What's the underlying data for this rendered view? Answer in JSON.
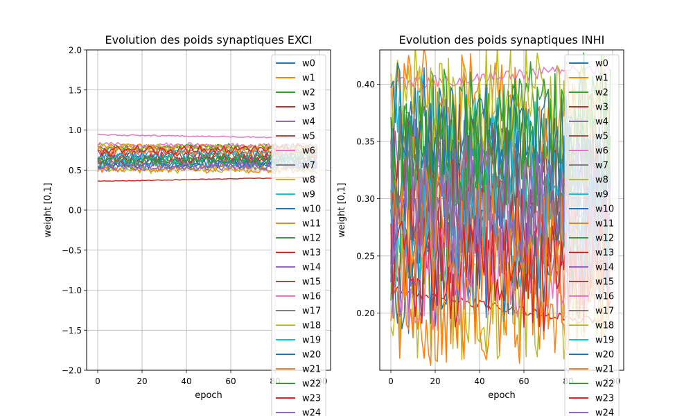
{
  "chart_data": [
    {
      "type": "line",
      "title": "Evolution des poids synaptiques EXCI",
      "xlabel": "epoch",
      "ylabel": "weight [0,1]",
      "xlim": [
        -5,
        105
      ],
      "ylim": [
        -2.0,
        2.0
      ],
      "xticks": [
        0,
        20,
        40,
        60,
        80,
        100
      ],
      "xtick_labels": [
        "0",
        "20",
        "40",
        "60",
        "80",
        "100"
      ],
      "yticks": [
        -2.0,
        -1.5,
        -1.0,
        -0.5,
        0.0,
        0.5,
        1.0,
        1.5,
        2.0
      ],
      "ytick_labels": [
        "−2.0",
        "−1.5",
        "−1.0",
        "−0.5",
        "0.0",
        "0.5",
        "1.0",
        "1.5",
        "2.0"
      ],
      "grid": true,
      "legend_position": "upper-right",
      "n_epochs": 100,
      "series": [
        {
          "name": "w0",
          "color": "#1f77b4",
          "start": 0.62,
          "end": 0.58,
          "amp": 0.07
        },
        {
          "name": "w1",
          "color": "#ff7f0e",
          "start": 0.8,
          "end": 0.78,
          "amp": 0.03
        },
        {
          "name": "w2",
          "color": "#2ca02c",
          "start": 0.55,
          "end": 0.72,
          "amp": 0.08
        },
        {
          "name": "w3",
          "color": "#d62728",
          "start": 0.36,
          "end": 0.41,
          "amp": 0.005
        },
        {
          "name": "w4",
          "color": "#9467bd",
          "start": 0.72,
          "end": 0.68,
          "amp": 0.06
        },
        {
          "name": "w5",
          "color": "#8c564b",
          "start": 0.6,
          "end": 0.62,
          "amp": 0.07
        },
        {
          "name": "w6",
          "color": "#e377c2",
          "start": 0.94,
          "end": 0.9,
          "amp": 0.008
        },
        {
          "name": "w7",
          "color": "#7f7f7f",
          "start": 0.76,
          "end": 0.74,
          "amp": 0.05
        },
        {
          "name": "w8",
          "color": "#bcbd22",
          "start": 0.5,
          "end": 0.52,
          "amp": 0.05
        },
        {
          "name": "w9",
          "color": "#17becf",
          "start": 0.58,
          "end": 0.6,
          "amp": 0.07
        },
        {
          "name": "w10",
          "color": "#1f77b4",
          "start": 0.7,
          "end": 0.55,
          "amp": 0.06
        },
        {
          "name": "w11",
          "color": "#ff7f0e",
          "start": 0.52,
          "end": 0.5,
          "amp": 0.05
        },
        {
          "name": "w12",
          "color": "#2ca02c",
          "start": 0.78,
          "end": 0.8,
          "amp": 0.04
        },
        {
          "name": "w13",
          "color": "#d62728",
          "start": 0.66,
          "end": 0.65,
          "amp": 0.08
        },
        {
          "name": "w14",
          "color": "#9467bd",
          "start": 0.55,
          "end": 0.56,
          "amp": 0.06
        },
        {
          "name": "w15",
          "color": "#8c564b",
          "start": 0.64,
          "end": 0.7,
          "amp": 0.07
        },
        {
          "name": "w16",
          "color": "#e377c2",
          "start": 0.82,
          "end": 0.8,
          "amp": 0.03
        },
        {
          "name": "w17",
          "color": "#7f7f7f",
          "start": 0.6,
          "end": 0.58,
          "amp": 0.06
        },
        {
          "name": "w18",
          "color": "#bcbd22",
          "start": 0.79,
          "end": 0.77,
          "amp": 0.04
        },
        {
          "name": "w19",
          "color": "#17becf",
          "start": 0.68,
          "end": 0.7,
          "amp": 0.06
        },
        {
          "name": "w20",
          "color": "#1f77b4",
          "start": 0.57,
          "end": 0.6,
          "amp": 0.06
        },
        {
          "name": "w21",
          "color": "#ff7f0e",
          "start": 0.75,
          "end": 0.72,
          "amp": 0.05
        },
        {
          "name": "w22",
          "color": "#2ca02c",
          "start": 0.62,
          "end": 0.64,
          "amp": 0.06
        },
        {
          "name": "w23",
          "color": "#d62728",
          "start": 0.74,
          "end": 0.78,
          "amp": 0.06
        },
        {
          "name": "w24",
          "color": "#9467bd",
          "start": 0.53,
          "end": 0.55,
          "amp": 0.05
        }
      ]
    },
    {
      "type": "line",
      "title": "Evolution des poids synaptiques INHI",
      "xlabel": "epoch",
      "ylabel": "weight [0,1]",
      "xlim": [
        -5,
        105
      ],
      "ylim": [
        0.15,
        0.43
      ],
      "xticks": [
        0,
        20,
        40,
        60,
        80,
        100
      ],
      "xtick_labels": [
        "0",
        "20",
        "40",
        "60",
        "80",
        "100"
      ],
      "yticks": [
        0.2,
        0.25,
        0.3,
        0.35,
        0.4
      ],
      "ytick_labels": [
        "0.20",
        "0.25",
        "0.30",
        "0.35",
        "0.40"
      ],
      "grid": true,
      "legend_position": "upper-right",
      "n_epochs": 100,
      "series": [
        {
          "name": "w0",
          "color": "#1f77b4",
          "start": 0.31,
          "end": 0.3,
          "amp": 0.07
        },
        {
          "name": "w1",
          "color": "#ff7f0e",
          "start": 0.38,
          "end": 0.35,
          "amp": 0.06
        },
        {
          "name": "w2",
          "color": "#2ca02c",
          "start": 0.26,
          "end": 0.28,
          "amp": 0.06
        },
        {
          "name": "w3",
          "color": "#d62728",
          "start": 0.22,
          "end": 0.19,
          "amp": 0.004
        },
        {
          "name": "w4",
          "color": "#9467bd",
          "start": 0.33,
          "end": 0.26,
          "amp": 0.05
        },
        {
          "name": "w5",
          "color": "#8c564b",
          "start": 0.27,
          "end": 0.33,
          "amp": 0.06
        },
        {
          "name": "w6",
          "color": "#e377c2",
          "start": 0.4,
          "end": 0.415,
          "amp": 0.006
        },
        {
          "name": "w7",
          "color": "#7f7f7f",
          "start": 0.3,
          "end": 0.32,
          "amp": 0.07
        },
        {
          "name": "w8",
          "color": "#bcbd22",
          "start": 0.21,
          "end": 0.22,
          "amp": 0.06
        },
        {
          "name": "w9",
          "color": "#17becf",
          "start": 0.36,
          "end": 0.31,
          "amp": 0.06
        },
        {
          "name": "w10",
          "color": "#1f77b4",
          "start": 0.24,
          "end": 0.26,
          "amp": 0.06
        },
        {
          "name": "w11",
          "color": "#ff7f0e",
          "start": 0.2,
          "end": 0.21,
          "amp": 0.05
        },
        {
          "name": "w12",
          "color": "#2ca02c",
          "start": 0.35,
          "end": 0.37,
          "amp": 0.06
        },
        {
          "name": "w13",
          "color": "#d62728",
          "start": 0.29,
          "end": 0.27,
          "amp": 0.06
        },
        {
          "name": "w14",
          "color": "#9467bd",
          "start": 0.25,
          "end": 0.3,
          "amp": 0.06
        },
        {
          "name": "w15",
          "color": "#8c564b",
          "start": 0.34,
          "end": 0.32,
          "amp": 0.05
        },
        {
          "name": "w16",
          "color": "#e377c2",
          "start": 0.23,
          "end": 0.25,
          "amp": 0.05
        },
        {
          "name": "w17",
          "color": "#7f7f7f",
          "start": 0.32,
          "end": 0.29,
          "amp": 0.06
        },
        {
          "name": "w18",
          "color": "#bcbd22",
          "start": 0.39,
          "end": 0.38,
          "amp": 0.05
        },
        {
          "name": "w19",
          "color": "#17becf",
          "start": 0.28,
          "end": 0.27,
          "amp": 0.06
        },
        {
          "name": "w20",
          "color": "#1f77b4",
          "start": 0.37,
          "end": 0.34,
          "amp": 0.05
        },
        {
          "name": "w21",
          "color": "#ff7f0e",
          "start": 0.27,
          "end": 0.25,
          "amp": 0.06
        },
        {
          "name": "w22",
          "color": "#2ca02c",
          "start": 0.33,
          "end": 0.36,
          "amp": 0.06
        },
        {
          "name": "w23",
          "color": "#d62728",
          "start": 0.24,
          "end": 0.23,
          "amp": 0.05
        },
        {
          "name": "w24",
          "color": "#9467bd",
          "start": 0.3,
          "end": 0.29,
          "amp": 0.06
        }
      ]
    }
  ]
}
